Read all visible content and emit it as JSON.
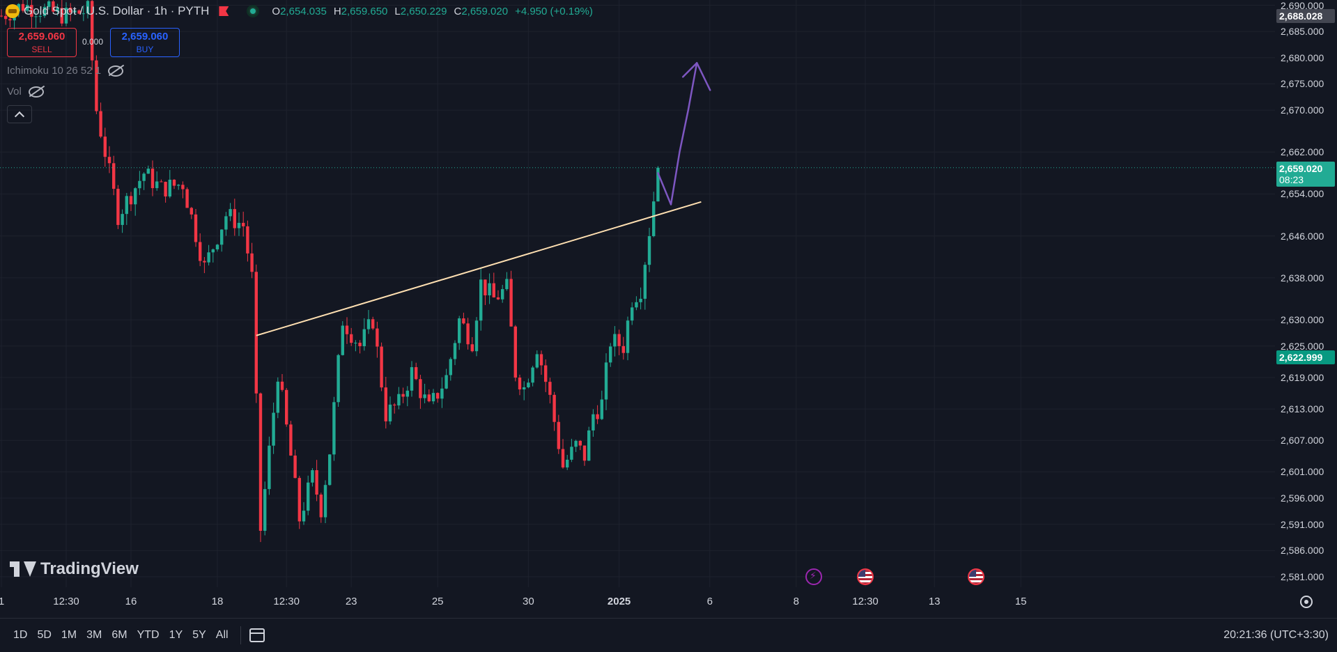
{
  "header": {
    "symbol_title": "Gold Spot / U.S. Dollar · 1h · PYTH",
    "ohlc": [
      {
        "k": "O",
        "v": "2,654.035"
      },
      {
        "k": "H",
        "v": "2,659.650"
      },
      {
        "k": "L",
        "v": "2,650.229"
      },
      {
        "k": "C",
        "v": "2,659.020"
      },
      {
        "k": "",
        "v": "+4.950 (+0.19%)"
      }
    ]
  },
  "trade": {
    "sell_price": "2,659.060",
    "sell_label": "SELL",
    "spread": "0.000",
    "buy_price": "2,659.060",
    "buy_label": "BUY"
  },
  "indicators": [
    {
      "label": "Ichimoku 10 26 52 1"
    },
    {
      "label": "Vol"
    }
  ],
  "logo_text": "TradingView",
  "bottom_bar": {
    "ranges": [
      "1D",
      "5D",
      "1M",
      "3M",
      "6M",
      "YTD",
      "1Y",
      "5Y",
      "All"
    ],
    "clock": "20:21:36 (UTC+3:30)"
  },
  "colors": {
    "background": "#131722",
    "up": "#22ab94",
    "down": "#f23645",
    "trendline": "#ffe0b2",
    "arrow": "#7e57c2",
    "grid": "#1e222d"
  },
  "chart_data": {
    "type": "candlestick",
    "instrument": "Gold Spot / U.S. Dollar",
    "interval": "1h",
    "ylim": [
      2579.0,
      2691.0
    ],
    "price_ticks": [
      "2,581.000",
      "2,586.000",
      "2,591.000",
      "2,596.000",
      "2,601.000",
      "2,607.000",
      "2,613.000",
      "2,619.000",
      "2,625.000",
      "2,630.000",
      "2,638.000",
      "2,646.000",
      "2,654.000",
      "2,662.000",
      "2,670.000",
      "2,675.000",
      "2,680.000",
      "2,685.000",
      "2,690.000"
    ],
    "time_ticks": [
      {
        "label": "1",
        "bar": 0
      },
      {
        "label": "12:30",
        "bar": 15
      },
      {
        "label": "16",
        "bar": 30
      },
      {
        "label": "18",
        "bar": 50
      },
      {
        "label": "12:30",
        "bar": 66
      },
      {
        "label": "23",
        "bar": 81
      },
      {
        "label": "25",
        "bar": 101
      },
      {
        "label": "30",
        "bar": 122
      },
      {
        "label": "2025",
        "bar": 143,
        "bold": true
      },
      {
        "label": "6",
        "bar": 164
      },
      {
        "label": "8",
        "bar": 184
      },
      {
        "label": "12:30",
        "bar": 200
      },
      {
        "label": "13",
        "bar": 216
      },
      {
        "label": "15",
        "bar": 236
      }
    ],
    "current_price": {
      "value": 2659.02,
      "label": "2,659.020",
      "countdown": "08:23"
    },
    "high_marker": {
      "value": 2688.028,
      "label": "2,688.028"
    },
    "low_marker": {
      "value": 2622.999,
      "label": "2,622.999"
    },
    "key_levels": [
      {
        "bar": 0,
        "price": 2688
      },
      {
        "bar": 5,
        "price": 2690
      },
      {
        "bar": 15,
        "price": 2688
      },
      {
        "bar": 20,
        "price": 2689
      },
      {
        "bar": 22,
        "price": 2670
      },
      {
        "bar": 27,
        "price": 2650
      },
      {
        "bar": 33,
        "price": 2658
      },
      {
        "bar": 37,
        "price": 2655
      },
      {
        "bar": 42,
        "price": 2656
      },
      {
        "bar": 47,
        "price": 2640
      },
      {
        "bar": 52,
        "price": 2650
      },
      {
        "bar": 56,
        "price": 2648
      },
      {
        "bar": 58,
        "price": 2638
      },
      {
        "bar": 60,
        "price": 2590
      },
      {
        "bar": 62,
        "price": 2605
      },
      {
        "bar": 64,
        "price": 2620
      },
      {
        "bar": 67,
        "price": 2604
      },
      {
        "bar": 69,
        "price": 2592
      },
      {
        "bar": 72,
        "price": 2600
      },
      {
        "bar": 74,
        "price": 2594
      },
      {
        "bar": 76,
        "price": 2605
      },
      {
        "bar": 79,
        "price": 2630
      },
      {
        "bar": 83,
        "price": 2625
      },
      {
        "bar": 86,
        "price": 2630
      },
      {
        "bar": 89,
        "price": 2612
      },
      {
        "bar": 92,
        "price": 2614
      },
      {
        "bar": 95,
        "price": 2620
      },
      {
        "bar": 99,
        "price": 2613
      },
      {
        "bar": 103,
        "price": 2619
      },
      {
        "bar": 106,
        "price": 2630
      },
      {
        "bar": 109,
        "price": 2626
      },
      {
        "bar": 111,
        "price": 2637
      },
      {
        "bar": 114,
        "price": 2634
      },
      {
        "bar": 117,
        "price": 2636
      },
      {
        "bar": 119,
        "price": 2620
      },
      {
        "bar": 121,
        "price": 2617
      },
      {
        "bar": 124,
        "price": 2625
      },
      {
        "bar": 127,
        "price": 2615
      },
      {
        "bar": 130,
        "price": 2602
      },
      {
        "bar": 133,
        "price": 2606
      },
      {
        "bar": 135,
        "price": 2604
      },
      {
        "bar": 137,
        "price": 2612
      },
      {
        "bar": 139,
        "price": 2614
      },
      {
        "bar": 141,
        "price": 2626
      },
      {
        "bar": 144,
        "price": 2625
      },
      {
        "bar": 146,
        "price": 2634
      },
      {
        "bar": 148,
        "price": 2636
      },
      {
        "bar": 150,
        "price": 2647
      },
      {
        "bar": 152,
        "price": 2659
      }
    ],
    "trendline": {
      "from": {
        "bar": 59,
        "price": 2627
      },
      "to": {
        "bar": 162,
        "price": 2652.5
      }
    },
    "projection_arrow": [
      {
        "bar": 152,
        "price": 2658
      },
      {
        "bar": 155,
        "price": 2652
      },
      {
        "bar": 157,
        "price": 2662
      },
      {
        "bar": 159,
        "price": 2670
      },
      {
        "bar": 161,
        "price": 2679
      }
    ]
  }
}
